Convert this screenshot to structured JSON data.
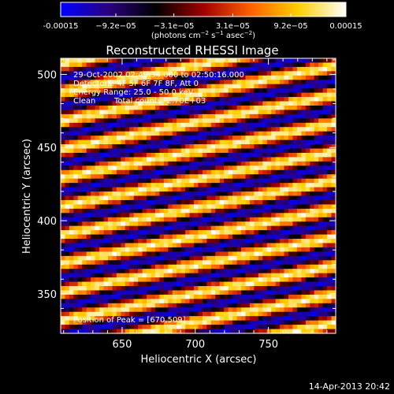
{
  "colorbar": {
    "ticks": [
      {
        "label": "-0.00015",
        "value": -0.00015
      },
      {
        "label": "−9.2e−05",
        "value": -9.2e-05
      },
      {
        "label": "−3.1e−05",
        "value": -3.1e-05
      },
      {
        "label": "3.1e−05",
        "value": 3.1e-05
      },
      {
        "label": "9.2e−05",
        "value": 9.2e-05
      },
      {
        "label": "0.00015",
        "value": 0.00015
      }
    ],
    "unit_label_parts": [
      "(photons cm",
      "−2",
      " s",
      "−1",
      " asec",
      "−2",
      ")"
    ],
    "colors": [
      "#0000ff",
      "#2a0080",
      "#000000",
      "#a00000",
      "#ff6000",
      "#ffd000",
      "#ffffff"
    ]
  },
  "title": "Reconstructed RHESSI Image",
  "annotations": {
    "time": "29-Oct-2002 02:49:34.000 to 02:50:16.000",
    "detectors": "Detectors: 4F 5F 6F 7F 8F, Att 0",
    "energy": "Energy Range: 25.0 - 50.0 keV",
    "clean": "Clean",
    "counts": "Total counts: 2.70E+03",
    "peak": "Position of Peak = [670,509]"
  },
  "footer": {
    "timestamp": "14-Apr-2013 20:42"
  },
  "chart_data": {
    "type": "heatmap",
    "title": "Reconstructed RHESSI Image",
    "xlabel": "Heliocentric X (arcsec)",
    "ylabel": "Heliocentric Y (arcsec)",
    "xlim": [
      608,
      796
    ],
    "ylim": [
      323,
      511
    ],
    "x_ticks": [
      650,
      700,
      750
    ],
    "y_ticks": [
      350,
      400,
      450,
      500
    ],
    "color_range": [
      -0.00015,
      0.00015
    ],
    "pattern": {
      "description_free": true,
      "stripe_slope": 0.2,
      "stripe_period_y": 19.5,
      "peak": [
        670,
        509
      ]
    }
  }
}
